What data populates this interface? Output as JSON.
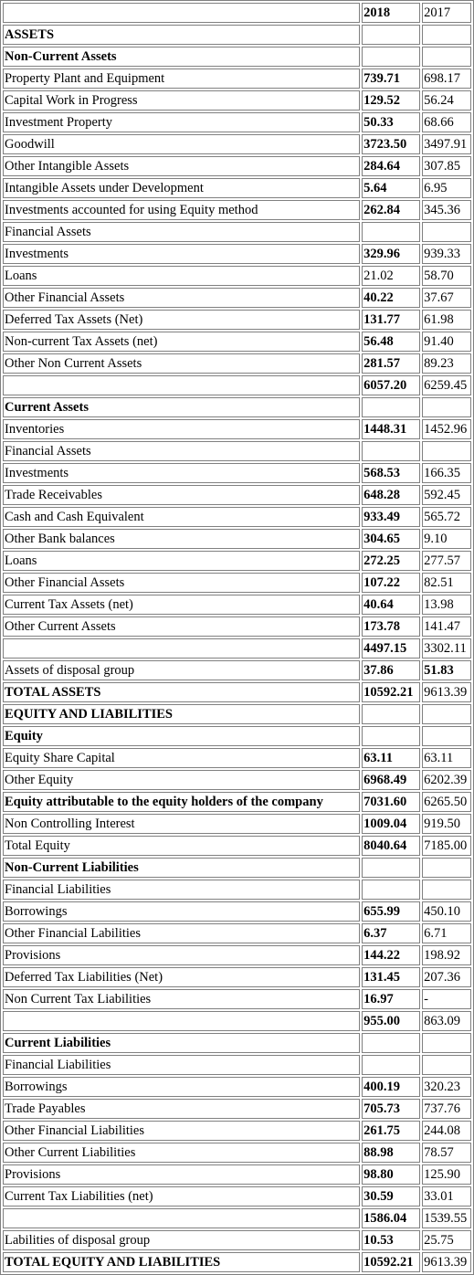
{
  "header": {
    "label": "",
    "year_current": "2018",
    "year_prior": "2017"
  },
  "rows": [
    {
      "label": "ASSETS",
      "v2018": "",
      "v2017": "",
      "bold_label": true
    },
    {
      "label": "Non-Current Assets",
      "v2018": "",
      "v2017": "",
      "bold_label": true
    },
    {
      "label": "Property Plant and Equipment",
      "v2018": "739.71",
      "v2017": "698.17",
      "bold_label": false
    },
    {
      "label": "Capital Work in Progress",
      "v2018": "129.52",
      "v2017": "56.24",
      "bold_label": false
    },
    {
      "label": "Investment Property",
      "v2018": "50.33",
      "v2017": "68.66",
      "bold_label": false
    },
    {
      "label": "Goodwill",
      "v2018": "3723.50",
      "v2017": "3497.91",
      "bold_label": false
    },
    {
      "label": "Other Intangible Assets",
      "v2018": "284.64",
      "v2017": "307.85",
      "bold_label": false
    },
    {
      "label": "Intangible Assets under Development",
      "v2018": "5.64",
      "v2017": "6.95",
      "bold_label": false
    },
    {
      "label": "Investments accounted for using Equity method",
      "v2018": "262.84",
      "v2017": "345.36",
      "bold_label": false
    },
    {
      "label": "Financial Assets",
      "v2018": "",
      "v2017": "",
      "bold_label": false
    },
    {
      "label": "Investments",
      "v2018": "329.96",
      "v2017": "939.33",
      "bold_label": false
    },
    {
      "label": "Loans",
      "v2018": "21.02",
      "v2017": "58.70",
      "bold_label": false,
      "normal_v2018": true
    },
    {
      "label": "Other Financial Assets",
      "v2018": "40.22",
      "v2017": "37.67",
      "bold_label": false
    },
    {
      "label": "Deferred Tax Assets (Net)",
      "v2018": "131.77",
      "v2017": "61.98",
      "bold_label": false
    },
    {
      "label": "Non-current Tax Assets (net)",
      "v2018": "56.48",
      "v2017": "91.40",
      "bold_label": false
    },
    {
      "label": "Other Non Current Assets",
      "v2018": "281.57",
      "v2017": "89.23",
      "bold_label": false
    },
    {
      "label": "",
      "v2018": "6057.20",
      "v2017": "6259.45",
      "bold_label": false
    },
    {
      "label": "Current Assets",
      "v2018": "",
      "v2017": "",
      "bold_label": true
    },
    {
      "label": "Inventories",
      "v2018": "1448.31",
      "v2017": "1452.96",
      "bold_label": false
    },
    {
      "label": "Financial Assets",
      "v2018": "",
      "v2017": "",
      "bold_label": false
    },
    {
      "label": "Investments",
      "v2018": "568.53",
      "v2017": "166.35",
      "bold_label": false
    },
    {
      "label": "Trade Receivables",
      "v2018": "648.28",
      "v2017": "592.45",
      "bold_label": false
    },
    {
      "label": "Cash and Cash Equivalent",
      "v2018": "933.49",
      "v2017": "565.72",
      "bold_label": false
    },
    {
      "label": "Other Bank balances",
      "v2018": "304.65",
      "v2017": "9.10",
      "bold_label": false
    },
    {
      "label": "Loans",
      "v2018": "272.25",
      "v2017": "277.57",
      "bold_label": false
    },
    {
      "label": "Other Financial Assets",
      "v2018": "107.22",
      "v2017": "82.51",
      "bold_label": false
    },
    {
      "label": "Current Tax Assets (net)",
      "v2018": "40.64",
      "v2017": "13.98",
      "bold_label": false
    },
    {
      "label": "Other Current Assets",
      "v2018": "173.78",
      "v2017": "141.47",
      "bold_label": false
    },
    {
      "label": "",
      "v2018": "4497.15",
      "v2017": "3302.11",
      "bold_label": false
    },
    {
      "label": "Assets of disposal group",
      "v2018": "37.86",
      "v2017": "51.83",
      "bold_label": false,
      "bold_v2017": true
    },
    {
      "label": "TOTAL ASSETS",
      "v2018": "10592.21",
      "v2017": "9613.39",
      "bold_label": true
    },
    {
      "label": "EQUITY AND LIABILITIES",
      "v2018": "",
      "v2017": "",
      "bold_label": true
    },
    {
      "label": "Equity",
      "v2018": "",
      "v2017": "",
      "bold_label": true
    },
    {
      "label": "Equity Share Capital",
      "v2018": "63.11",
      "v2017": "63.11",
      "bold_label": false
    },
    {
      "label": "Other Equity",
      "v2018": "6968.49",
      "v2017": "6202.39",
      "bold_label": false
    },
    {
      "label": "Equity attributable to the equity holders of the company",
      "v2018": "7031.60",
      "v2017": "6265.50",
      "bold_label": true
    },
    {
      "label": "Non Controlling Interest",
      "v2018": "1009.04",
      "v2017": "919.50",
      "bold_label": false
    },
    {
      "label": "Total Equity",
      "v2018": "8040.64",
      "v2017": "7185.00",
      "bold_label": false
    },
    {
      "label": "Non-Current Liabilities",
      "v2018": "",
      "v2017": "",
      "bold_label": true
    },
    {
      "label": "Financial Liabilities",
      "v2018": "",
      "v2017": "",
      "bold_label": false
    },
    {
      "label": "Borrowings",
      "v2018": "655.99",
      "v2017": "450.10",
      "bold_label": false
    },
    {
      "label": "Other Financial Labilities",
      "v2018": "6.37",
      "v2017": "6.71",
      "bold_label": false
    },
    {
      "label": "Provisions",
      "v2018": "144.22",
      "v2017": "198.92",
      "bold_label": false
    },
    {
      "label": "Deferred Tax Liabilities (Net)",
      "v2018": "131.45",
      "v2017": "207.36",
      "bold_label": false
    },
    {
      "label": "Non Current Tax Liabilities",
      "v2018": "16.97",
      "v2017": "-",
      "bold_label": false
    },
    {
      "label": "",
      "v2018": "955.00",
      "v2017": "863.09",
      "bold_label": false
    },
    {
      "label": "Current Liabilities",
      "v2018": "",
      "v2017": "",
      "bold_label": true
    },
    {
      "label": "Financial Liabilities",
      "v2018": "",
      "v2017": "",
      "bold_label": false
    },
    {
      "label": "Borrowings",
      "v2018": "400.19",
      "v2017": "320.23",
      "bold_label": false
    },
    {
      "label": "Trade Payables",
      "v2018": "705.73",
      "v2017": "737.76",
      "bold_label": false
    },
    {
      "label": "Other Financial Liabilities",
      "v2018": "261.75",
      "v2017": "244.08",
      "bold_label": false
    },
    {
      "label": "Other Current Liabilities",
      "v2018": "88.98",
      "v2017": "78.57",
      "bold_label": false
    },
    {
      "label": "Provisions",
      "v2018": "98.80",
      "v2017": "125.90",
      "bold_label": false
    },
    {
      "label": "Current Tax Liabilities (net)",
      "v2018": "30.59",
      "v2017": "33.01",
      "bold_label": false
    },
    {
      "label": "",
      "v2018": "1586.04",
      "v2017": "1539.55",
      "bold_label": false
    },
    {
      "label": "Labilities of disposal group",
      "v2018": "10.53",
      "v2017": "25.75",
      "bold_label": false
    },
    {
      "label": "TOTAL EQUITY AND LIABILITIES",
      "v2018": "10592.21",
      "v2017": "9613.39",
      "bold_label": true
    }
  ]
}
